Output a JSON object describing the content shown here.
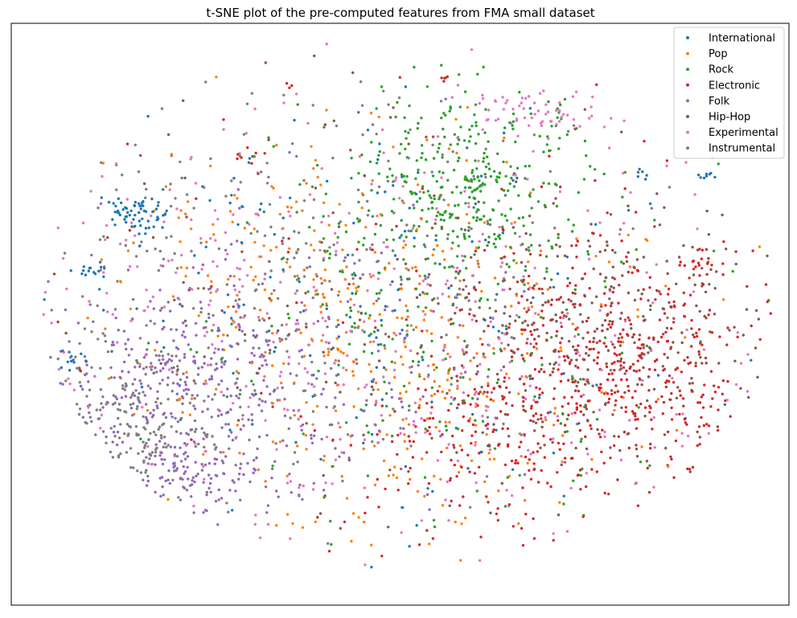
{
  "chart_data": {
    "type": "scatter",
    "title": "t-SNE plot of the pre-computed features from FMA small dataset",
    "xlabel": "",
    "ylabel": "",
    "axes_ticks_visible": false,
    "grid": false,
    "legend_placement": "top-right",
    "xlim": [
      0,
      100
    ],
    "ylim": [
      0,
      100
    ],
    "series": [
      {
        "name": "International",
        "color": "#1f77b4",
        "clusters": [
          {
            "center": [
              15.5,
              67.0
            ],
            "spread": [
              2.0,
              1.8
            ],
            "count": 60
          },
          {
            "center": [
              10.5,
              57.5
            ],
            "spread": [
              1.0,
              0.8
            ],
            "count": 14
          },
          {
            "center": [
              8.2,
              42.0
            ],
            "spread": [
              0.8,
              1.2
            ],
            "count": 14
          },
          {
            "center": [
              89.5,
              74.0
            ],
            "spread": [
              0.6,
              0.4
            ],
            "count": 8
          },
          {
            "center": [
              81.0,
              74.0
            ],
            "spread": [
              0.5,
              0.6
            ],
            "count": 6
          },
          {
            "center": [
              45.0,
              52.0
            ],
            "spread": [
              20.0,
              18.0
            ],
            "count": 170
          }
        ]
      },
      {
        "name": "Pop",
        "color": "#ff7f0e",
        "clusters": [
          {
            "center": [
              52.0,
              40.0
            ],
            "spread": [
              16.0,
              16.0
            ],
            "count": 280
          },
          {
            "center": [
              40.0,
              55.0
            ],
            "spread": [
              16.0,
              16.0
            ],
            "count": 170
          }
        ]
      },
      {
        "name": "Rock",
        "color": "#2ca02c",
        "clusters": [
          {
            "center": [
              58.0,
              72.0
            ],
            "spread": [
              7.0,
              8.0
            ],
            "count": 300
          },
          {
            "center": [
              55.0,
              52.0
            ],
            "spread": [
              14.0,
              18.0
            ],
            "count": 260
          }
        ]
      },
      {
        "name": "Electronic",
        "color": "#d62728",
        "clusters": [
          {
            "center": [
              78.0,
              42.0
            ],
            "spread": [
              9.0,
              10.0
            ],
            "count": 380
          },
          {
            "center": [
              62.0,
              28.0
            ],
            "spread": [
              10.0,
              8.0
            ],
            "count": 160
          },
          {
            "center": [
              89.5,
              59.0
            ],
            "spread": [
              1.2,
              1.0
            ],
            "count": 14
          },
          {
            "center": [
              30.5,
              77.5
            ],
            "spread": [
              0.8,
              0.8
            ],
            "count": 8
          },
          {
            "center": [
              55.7,
              90.6
            ],
            "spread": [
              0.4,
              0.3
            ],
            "count": 4
          },
          {
            "center": [
              35.5,
              89.5
            ],
            "spread": [
              0.3,
              0.3
            ],
            "count": 3
          },
          {
            "center": [
              55.0,
              55.0
            ],
            "spread": [
              25.0,
              22.0
            ],
            "count": 80
          }
        ]
      },
      {
        "name": "Folk",
        "color": "#9467bd",
        "clusters": [
          {
            "center": [
              22.0,
              36.0
            ],
            "spread": [
              10.0,
              10.0
            ],
            "count": 340
          },
          {
            "center": [
              25.0,
              22.0
            ],
            "spread": [
              5.0,
              3.0
            ],
            "count": 60
          },
          {
            "center": [
              40.0,
              48.0
            ],
            "spread": [
              16.0,
              16.0
            ],
            "count": 110
          }
        ]
      },
      {
        "name": "Hip-Hop",
        "color": "#8c564b",
        "clusters": [
          {
            "center": [
              75.0,
              45.0
            ],
            "spread": [
              11.0,
              12.0
            ],
            "count": 380
          },
          {
            "center": [
              45.0,
              55.0
            ],
            "spread": [
              20.0,
              20.0
            ],
            "count": 110
          }
        ]
      },
      {
        "name": "Experimental",
        "color": "#e377c2",
        "clusters": [
          {
            "center": [
              68.0,
              85.0
            ],
            "spread": [
              5.0,
              2.0
            ],
            "count": 60
          },
          {
            "center": [
              35.0,
              50.0
            ],
            "spread": [
              22.0,
              20.0
            ],
            "count": 320
          },
          {
            "center": [
              70.0,
              40.0
            ],
            "spread": [
              18.0,
              20.0
            ],
            "count": 120
          }
        ]
      },
      {
        "name": "Instrumental",
        "color": "#7f7f7f",
        "clusters": [
          {
            "center": [
              16.0,
              30.0
            ],
            "spread": [
              6.0,
              6.0
            ],
            "count": 160
          },
          {
            "center": [
              30.0,
              55.0
            ],
            "spread": [
              16.0,
              17.0
            ],
            "count": 240
          },
          {
            "center": [
              55.0,
              60.0
            ],
            "spread": [
              20.0,
              20.0
            ],
            "count": 70
          }
        ]
      }
    ]
  }
}
